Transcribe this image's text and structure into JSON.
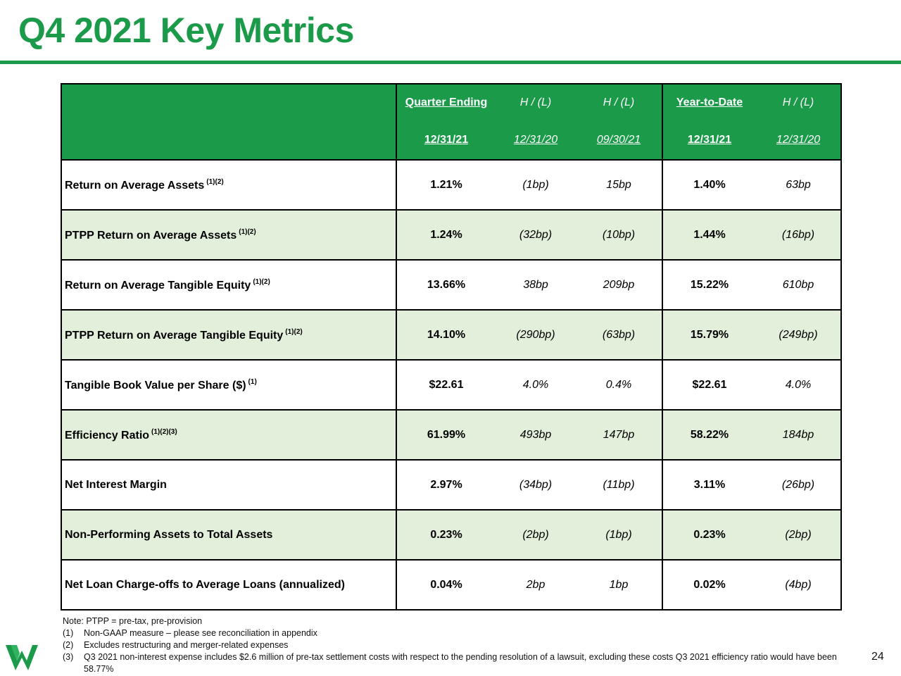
{
  "title": "Q4 2021 Key Metrics",
  "header": {
    "row1": [
      "Quarter Ending",
      "H / (L)",
      "H / (L)",
      "Year-to-Date",
      "H / (L)"
    ],
    "row2": [
      "12/31/21",
      "12/31/20",
      "09/30/21",
      "12/31/21",
      "12/31/20"
    ]
  },
  "rows": [
    {
      "label": "Return on Average Assets",
      "sup": "(1)(2)",
      "q": "1.21%",
      "v1": "(1bp)",
      "v2": "15bp",
      "ytd": "1.40%",
      "v3": "63bp"
    },
    {
      "label": "PTPP Return on Average Assets",
      "sup": "(1)(2)",
      "q": "1.24%",
      "v1": "(32bp)",
      "v2": "(10bp)",
      "ytd": "1.44%",
      "v3": "(16bp)"
    },
    {
      "label": "Return on Average Tangible Equity",
      "sup": "(1)(2)",
      "q": "13.66%",
      "v1": "38bp",
      "v2": "209bp",
      "ytd": "15.22%",
      "v3": "610bp"
    },
    {
      "label": "PTPP Return on Average Tangible Equity",
      "sup": "(1)(2)",
      "q": "14.10%",
      "v1": "(290bp)",
      "v2": "(63bp)",
      "ytd": "15.79%",
      "v3": "(249bp)"
    },
    {
      "label": "Tangible Book Value per Share ($)",
      "sup": "(1)",
      "q": "$22.61",
      "v1": "4.0%",
      "v2": "0.4%",
      "ytd": "$22.61",
      "v3": "4.0%"
    },
    {
      "label": "Efficiency Ratio",
      "sup": "(1)(2)(3)",
      "q": "61.99%",
      "v1": "493bp",
      "v2": "147bp",
      "ytd": "58.22%",
      "v3": "184bp"
    },
    {
      "label": "Net Interest Margin",
      "sup": "",
      "q": "2.97%",
      "v1": "(34bp)",
      "v2": "(11bp)",
      "ytd": "3.11%",
      "v3": "(26bp)"
    },
    {
      "label": "Non-Performing Assets to Total Assets",
      "sup": "",
      "q": "0.23%",
      "v1": "(2bp)",
      "v2": "(1bp)",
      "ytd": "0.23%",
      "v3": "(2bp)"
    },
    {
      "label": "Net Loan Charge-offs to Average Loans (annualized)",
      "sup": "",
      "q": "0.04%",
      "v1": "2bp",
      "v2": "1bp",
      "ytd": "0.02%",
      "v3": "(4bp)"
    }
  ],
  "notes": {
    "intro": "Note:  PTPP = pre-tax, pre-provision",
    "items": [
      {
        "num": "(1)",
        "text": "Non-GAAP measure – please see reconciliation in appendix"
      },
      {
        "num": "(2)",
        "text": "Excludes restructuring and merger-related expenses"
      },
      {
        "num": "(3)",
        "text": "Q3 2021 non-interest expense includes $2.6 million of pre-tax settlement costs with respect to the pending resolution of a lawsuit, excluding these costs Q3 2021 efficiency ratio would have been 58.77%"
      }
    ]
  },
  "page_number": "24",
  "colors": {
    "brand_green": "#1b9a4a",
    "row_shade": "#e2efda"
  }
}
